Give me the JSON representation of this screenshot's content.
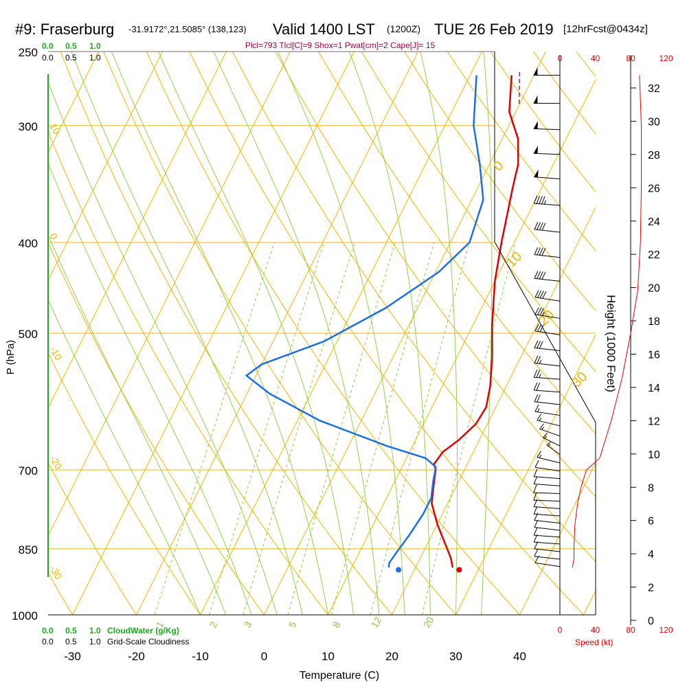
{
  "header": {
    "station": "#9: Fraserburg",
    "coords": "-31.9172°,21.5085° (138,123)",
    "valid": "Valid 1400 LST",
    "zulu": "(1200Z)",
    "date": "TUE 26 Feb 2019",
    "fcst": "[12hrFcst@0434z]",
    "indices": "Plcl=793 Tlcl[C]=9 Shox=1 Pwat[cm]=2 Cape[J]= 15"
  },
  "bottom_legend": {
    "cloudwater_scale": [
      "0.0",
      "0.5",
      "1.0"
    ],
    "cloudwater_label": "CloudWater (g/Kg)",
    "cloudiness_scale": [
      "0.0",
      "0.5",
      "1.0"
    ],
    "cloudiness_label": "Grid-Scale Cloudiness",
    "speed_label": "Speed (kt)"
  },
  "colors": {
    "temperature": "#e00000",
    "dewpoint": "#1a6ee8",
    "isobar_isotherm": "#f0b400",
    "dry_adiabat": "#f0b400",
    "moist_adiabat": "#8cc83c",
    "mixing_ratio": "#8cc83c",
    "cloudwater": "#21a821",
    "indices": "#a0004a",
    "speed": "#e00000"
  },
  "chart_data": {
    "type": "line",
    "subtype": "skew-T log-P sounding",
    "xlabel": "Temperature (C)",
    "ylabel": "P (hPa)",
    "right_ylabel": "Height (1000 Feet)",
    "x_ticks": [
      -30,
      -20,
      -10,
      0,
      10,
      20,
      30,
      40
    ],
    "xlim": [
      -34,
      46
    ],
    "pressure_ticks": [
      250,
      300,
      400,
      500,
      700,
      850,
      1000
    ],
    "pressure_range": [
      250,
      1000
    ],
    "height_ticks": [
      0,
      2,
      4,
      6,
      8,
      10,
      12,
      14,
      16,
      18,
      20,
      22,
      24,
      26,
      28,
      30,
      32
    ],
    "speed_ticks": [
      0,
      40,
      80,
      120
    ],
    "isotherm_labels": [
      "30",
      "20",
      "10",
      "0",
      "-10",
      "-20",
      "-30"
    ],
    "dry_adiabat_labels": [
      "10",
      "0",
      "-10",
      "-20",
      "-30"
    ],
    "moist_labels": [
      "0",
      "10",
      "20",
      "30"
    ],
    "mixing_ratio_labels": [
      "1",
      "2",
      "3",
      "5",
      "8",
      "12",
      "20"
    ],
    "series": [
      {
        "name": "Temperature",
        "color": "#e00000",
        "points": [
          [
            -3.5,
            265
          ],
          [
            -1,
            290
          ],
          [
            2.5,
            310
          ],
          [
            4.5,
            330
          ],
          [
            5.5,
            350
          ],
          [
            6.8,
            375
          ],
          [
            8,
            400
          ],
          [
            10,
            440
          ],
          [
            13,
            490
          ],
          [
            15.5,
            530
          ],
          [
            17.5,
            570
          ],
          [
            18.5,
            600
          ],
          [
            18.2,
            625
          ],
          [
            16.8,
            650
          ],
          [
            15.2,
            670
          ],
          [
            14.8,
            690
          ],
          [
            15.5,
            700
          ],
          [
            16.5,
            730
          ],
          [
            17.5,
            760
          ],
          [
            20,
            800
          ],
          [
            22.8,
            840
          ],
          [
            24.8,
            870
          ],
          [
            25.8,
            890
          ]
        ]
      },
      {
        "name": "Dewpoint",
        "color": "#1a6ee8",
        "points": [
          [
            -9,
            265
          ],
          [
            -5.5,
            300
          ],
          [
            -1.5,
            330
          ],
          [
            1.8,
            360
          ],
          [
            3,
            400
          ],
          [
            0.5,
            430
          ],
          [
            -5,
            470
          ],
          [
            -12,
            510
          ],
          [
            -20,
            540
          ],
          [
            -21.5,
            555
          ],
          [
            -16.5,
            580
          ],
          [
            -6.5,
            620
          ],
          [
            6,
            660
          ],
          [
            13,
            680
          ],
          [
            15.3,
            695
          ],
          [
            16,
            720
          ],
          [
            17,
            750
          ],
          [
            17,
            780
          ],
          [
            16.5,
            820
          ],
          [
            15.8,
            860
          ],
          [
            15.5,
            880
          ],
          [
            15.8,
            890
          ]
        ]
      }
    ],
    "surface_markers": [
      {
        "name": "Surface Temperature",
        "temp": 27,
        "pressure": 895
      },
      {
        "name": "Surface Dewpoint",
        "temp": 17.5,
        "pressure": 895
      }
    ],
    "wind_barbs_kt": {
      "pressures": [
        265,
        284,
        303,
        322,
        342,
        365,
        390,
        415,
        440,
        462,
        482,
        502,
        522,
        542,
        560,
        578,
        596,
        612,
        628,
        644,
        660,
        674,
        688,
        702,
        715,
        728,
        742,
        756,
        770,
        784,
        798,
        812,
        826,
        840,
        856,
        872,
        888
      ],
      "directions_deg": [
        270,
        270,
        275,
        275,
        280,
        280,
        285,
        285,
        285,
        290,
        290,
        290,
        285,
        285,
        280,
        280,
        285,
        290,
        300,
        310,
        320,
        330,
        300,
        290,
        280,
        280,
        275,
        275,
        280,
        280,
        285,
        285,
        280,
        280,
        285,
        285,
        290
      ],
      "speeds_kt": [
        50,
        50,
        50,
        50,
        50,
        45,
        40,
        40,
        40,
        40,
        35,
        30,
        30,
        28,
        25,
        22,
        20,
        18,
        15,
        15,
        15,
        15,
        15,
        12,
        12,
        10,
        10,
        10,
        10,
        10,
        10,
        10,
        10,
        10,
        10,
        10,
        10
      ]
    },
    "wind_speed_profile": {
      "name": "Speed (kt)",
      "points": [
        [
          90,
          265
        ],
        [
          92,
          300
        ],
        [
          92,
          350
        ],
        [
          91,
          400
        ],
        [
          88,
          450
        ],
        [
          80,
          500
        ],
        [
          70,
          560
        ],
        [
          58,
          620
        ],
        [
          45,
          680
        ],
        [
          30,
          700
        ],
        [
          24,
          730
        ],
        [
          20,
          760
        ],
        [
          17,
          800
        ],
        [
          16,
          840
        ],
        [
          16,
          870
        ],
        [
          14,
          890
        ]
      ]
    }
  }
}
